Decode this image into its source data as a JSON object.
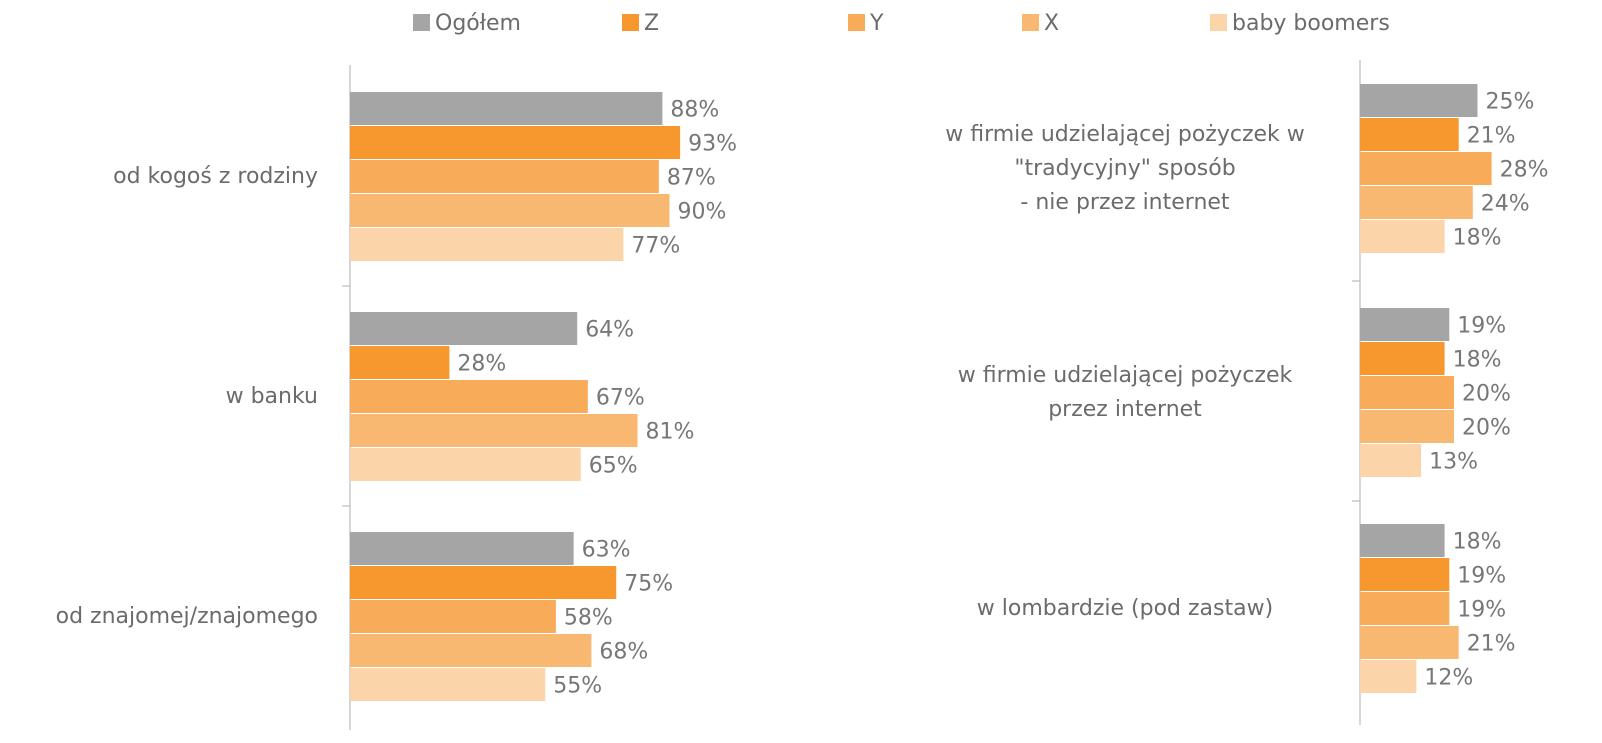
{
  "chart_data": [
    {
      "type": "hbar",
      "categories": [
        "od kogoś z rodziny",
        "w banku",
        "od znajomej/znajomego"
      ],
      "xlim": [
        0,
        100
      ],
      "series": [
        {
          "name": "Ogółem",
          "color": "#a5a5a5",
          "values": [
            88,
            64,
            63
          ],
          "value_labels": [
            "88%",
            "64%",
            "63%"
          ]
        },
        {
          "name": "Z",
          "color": "#f7982e",
          "values": [
            93,
            28,
            75
          ],
          "value_labels": [
            "93%",
            "28%",
            "75%"
          ]
        },
        {
          "name": "Y",
          "color": "#f8ab58",
          "values": [
            87,
            67,
            58
          ],
          "value_labels": [
            "87%",
            "67%",
            "58%"
          ]
        },
        {
          "name": "X",
          "color": "#f9b872",
          "values": [
            90,
            81,
            68
          ],
          "value_labels": [
            "90%",
            "81%",
            "68%"
          ]
        },
        {
          "name": "baby boomers",
          "color": "#fcd4aa",
          "values": [
            77,
            65,
            55
          ],
          "value_labels": [
            "77%",
            "65%",
            "55%"
          ]
        }
      ]
    },
    {
      "type": "hbar",
      "categories": [
        [
          "w firmie udzielającej pożyczek w",
          "\"tradycyjny\" sposób",
          "- nie przez internet"
        ],
        [
          "w firmie udzielającej pożyczek",
          "przez internet"
        ],
        [
          "w lombardzie (pod zastaw)"
        ]
      ],
      "xlim": [
        0,
        30
      ],
      "series": [
        {
          "color": "#a5a5a5",
          "values": [
            25,
            19,
            18
          ],
          "value_labels": [
            "25%",
            "19%",
            "18%"
          ]
        },
        {
          "color": "#f7982e",
          "values": [
            21,
            18,
            19
          ],
          "value_labels": [
            "21%",
            "18%",
            "19%"
          ]
        },
        {
          "color": "#f8ab58",
          "values": [
            28,
            20,
            19
          ],
          "value_labels": [
            "28%",
            "20%",
            "19%"
          ]
        },
        {
          "color": "#f9b872",
          "values": [
            24,
            20,
            21
          ],
          "value_labels": [
            "24%",
            "20%",
            "21%"
          ]
        },
        {
          "color": "#fcd4aa",
          "values": [
            18,
            13,
            12
          ],
          "value_labels": [
            "18%",
            "13%",
            "12%"
          ]
        }
      ]
    }
  ]
}
